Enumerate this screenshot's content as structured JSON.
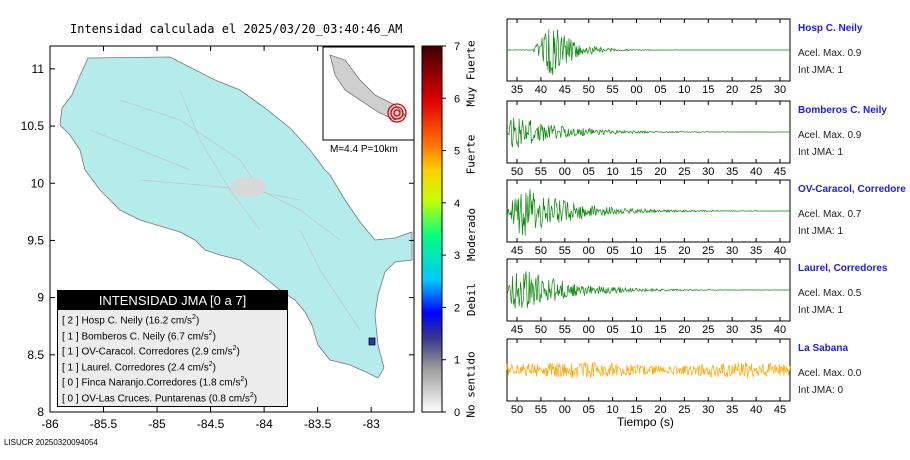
{
  "title": "Intensidad calculada el 2025/03/20_03:40:46_AM",
  "map": {
    "xticks": [
      "-86",
      "-85.5",
      "-85",
      "-84.5",
      "-84",
      "-83.5",
      "-83"
    ],
    "yticks": [
      "11",
      "10.5",
      "10",
      "9.5",
      "9",
      "8.5",
      "8"
    ],
    "land_color": "#b4ecec",
    "inset_caption": "M=4.4 P=10km"
  },
  "legend": {
    "title": "INTENSIDAD JMA [0 a 7]",
    "rows": [
      {
        "level": "[ 2 ]",
        "name": "Hosp C. Neily",
        "value": "(16.2 cm/s",
        "exp": "2",
        "end": ")"
      },
      {
        "level": "[ 1 ]",
        "name": "Bomberos C. Neily",
        "value": "(6.7 cm/s",
        "exp": "2",
        "end": ")"
      },
      {
        "level": "[ 1 ]",
        "name": "OV-Caracol. Corredores",
        "value": "(2.9 cm/s",
        "exp": "2",
        "end": ")"
      },
      {
        "level": "[ 1 ]",
        "name": "Laurel. Corredores",
        "value": "(2.4 cm/s",
        "exp": "2",
        "end": ")"
      },
      {
        "level": "[ 0 ]",
        "name": "Finca Naranjo.Corredores",
        "value": "(1.8 cm/s",
        "exp": "2",
        "end": ")"
      },
      {
        "level": "[ 0 ]",
        "name": "OV-Las Cruces. Puntarenas",
        "value": "(0.8 cm/s",
        "exp": "2",
        "end": ")"
      }
    ]
  },
  "colorbar": {
    "ticks": [
      "7",
      "6",
      "5",
      "4",
      "3",
      "2",
      "1",
      "0"
    ],
    "labels": [
      "Muy Fuerte",
      "Fuerte",
      "Moderado",
      "Debil",
      "No sentido"
    ]
  },
  "footer": "LISUCR 20250320094054",
  "stations": [
    {
      "name": "Hosp C. Neily",
      "acel": "Acel. Max. 0.9",
      "int": "Int JMA: 1",
      "color": "#0a8a0a",
      "ticks": [
        "35",
        "40",
        "45",
        "50",
        "55",
        "00",
        "05",
        "10",
        "15",
        "20",
        "25",
        "30"
      ]
    },
    {
      "name": "Bomberos C. Neily",
      "acel": "Acel. Max. 0.9",
      "int": "Int JMA: 1",
      "color": "#0a8a0a",
      "ticks": [
        "50",
        "55",
        "00",
        "05",
        "10",
        "15",
        "20",
        "25",
        "30",
        "35",
        "40",
        "45"
      ]
    },
    {
      "name": "OV-Caracol, Corredore",
      "acel": "Acel. Max. 0.7",
      "int": "Int JMA: 1",
      "color": "#0a8a0a",
      "ticks": [
        "45",
        "50",
        "55",
        "00",
        "05",
        "10",
        "15",
        "20",
        "25",
        "30",
        "35",
        "40"
      ]
    },
    {
      "name": "Laurel, Corredores",
      "acel": "Acel. Max. 0.5",
      "int": "Int JMA: 1",
      "color": "#0a8a0a",
      "ticks": [
        "45",
        "50",
        "55",
        "00",
        "05",
        "10",
        "15",
        "20",
        "25",
        "30",
        "35",
        "40"
      ]
    },
    {
      "name": "La Sabana",
      "acel": "Acel. Max. 0.0",
      "int": "Int JMA: 0",
      "color": "#ffa500",
      "ticks": [
        "50",
        "55",
        "00",
        "05",
        "10",
        "15",
        "20",
        "25",
        "30",
        "35",
        "40",
        "45"
      ]
    }
  ],
  "time_axis_label": "Tiempo (s)",
  "chart_data": [
    {
      "type": "scatter",
      "title": "Intensidad calculada el 2025/03/20_03:40:46_AM",
      "xlabel": "",
      "ylabel": "",
      "xlim": [
        -86,
        -82.6
      ],
      "ylim": [
        8,
        11.2
      ],
      "x_ticks": [
        -86,
        -85.5,
        -85,
        -84.5,
        -84,
        -83.5,
        -83
      ],
      "y_ticks": [
        8,
        8.5,
        9,
        9.5,
        10,
        10.5,
        11
      ],
      "legend_placement": "bottom-left",
      "colorbar": {
        "min": 0,
        "max": 7,
        "labels": [
          "No sentido",
          "Debil",
          "Moderado",
          "Fuerte",
          "Muy Fuerte"
        ]
      },
      "points": [
        {
          "name": "Hosp C. Neily",
          "intensity": 2,
          "pga_cm_s2": 16.2
        },
        {
          "name": "Bomberos C. Neily",
          "intensity": 1,
          "pga_cm_s2": 6.7
        },
        {
          "name": "OV-Caracol. Corredores",
          "intensity": 1,
          "pga_cm_s2": 2.9
        },
        {
          "name": "Laurel. Corredores",
          "intensity": 1,
          "pga_cm_s2": 2.4
        },
        {
          "name": "Finca Naranjo.Corredores",
          "intensity": 0,
          "pga_cm_s2": 1.8
        },
        {
          "name": "OV-Las Cruces. Puntarenas",
          "intensity": 0,
          "pga_cm_s2": 0.8
        }
      ]
    },
    {
      "type": "line",
      "xlabel": "Tiempo (s)",
      "series": [
        {
          "name": "Hosp C. Neily",
          "acel_max": 0.9,
          "int_jma": 1,
          "burst_start": 0.09,
          "burst_peak": 0.16,
          "amp": 1.0
        },
        {
          "name": "Bomberos C. Neily",
          "acel_max": 0.9,
          "int_jma": 1,
          "burst_start": 0.0,
          "burst_peak": 0.02,
          "amp": 0.6
        },
        {
          "name": "OV-Caracol, Corredore",
          "acel_max": 0.7,
          "int_jma": 1,
          "burst_start": 0.0,
          "burst_peak": 0.05,
          "amp": 0.95
        },
        {
          "name": "Laurel, Corredores",
          "acel_max": 0.5,
          "int_jma": 1,
          "burst_start": 0.0,
          "burst_peak": 0.03,
          "amp": 0.85
        },
        {
          "name": "La Sabana",
          "acel_max": 0.0,
          "int_jma": 0,
          "burst_start": 0.0,
          "burst_peak": 0.5,
          "amp": 0.55
        }
      ]
    }
  ]
}
